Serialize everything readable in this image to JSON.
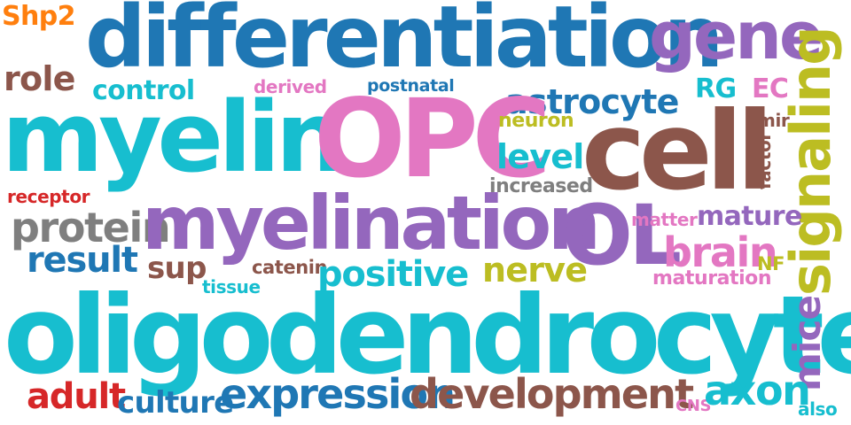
{
  "palette": {
    "dark_blue": "#1f77b4",
    "cyan": "#17becf",
    "purple": "#9467bd",
    "pink": "#e377c2",
    "brown": "#8c564b",
    "olive": "#bcbd22",
    "orange": "#ff7f0e",
    "red": "#d62728",
    "gray": "#7f7f7f"
  },
  "words": {
    "shp2": "Shp2",
    "differentiation": "differentiation",
    "gene": "gene",
    "role": "role",
    "control": "control",
    "derived": "derived",
    "postnatal": "postnatal",
    "rg": "RG",
    "ec": "EC",
    "signaling": "signaling",
    "astrocyte": "astrocyte",
    "myelin": "myelin",
    "opc": "OPC",
    "neuron": "neuron",
    "mir": "mir",
    "cell": "cell",
    "level": "level",
    "factor": "factor",
    "receptor": "receptor",
    "increased": "increased",
    "protein": "protein",
    "myelination": "myelination",
    "ol": "OL",
    "matter": "matter",
    "mature": "mature",
    "result": "result",
    "brain": "brain",
    "sup": "sup",
    "catenin": "catenin",
    "positive": "positive",
    "nerve": "nerve",
    "nf": "NF",
    "tissue": "tissue",
    "maturation": "maturation",
    "oligodendrocyte": "oligodendrocyte",
    "mice": "mice",
    "adult": "adult",
    "culture": "culture",
    "expression": "expression",
    "development": "development",
    "cns": "CNS",
    "axon": "axon",
    "also": "also"
  }
}
